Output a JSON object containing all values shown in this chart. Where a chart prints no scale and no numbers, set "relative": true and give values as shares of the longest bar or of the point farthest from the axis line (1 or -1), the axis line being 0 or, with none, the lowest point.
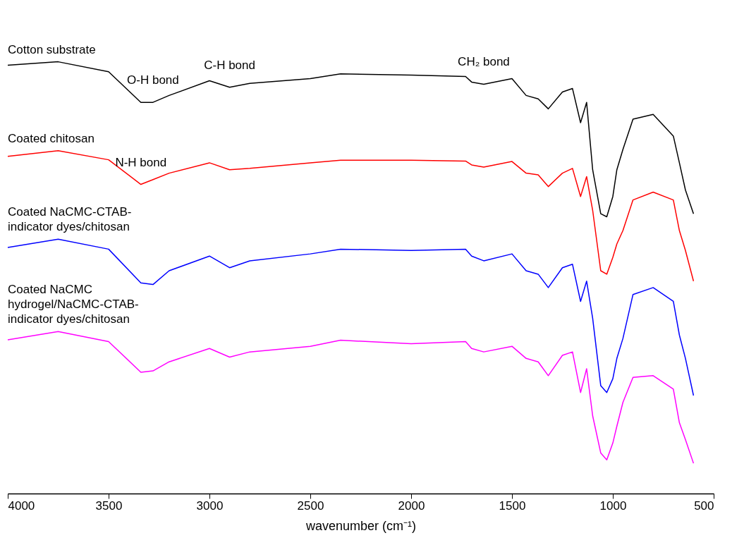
{
  "chart_data": {
    "type": "line",
    "relative": true,
    "xlabel": "wavenumber (cm⁻¹)",
    "xlim": [
      4000,
      500
    ],
    "xticks": [
      4000,
      3500,
      3000,
      2500,
      2000,
      1500,
      1000,
      500
    ],
    "x": [
      4000,
      3750,
      3500,
      3340,
      3280,
      3200,
      3000,
      2900,
      2800,
      2500,
      2350,
      2000,
      1730,
      1700,
      1640,
      1500,
      1430,
      1370,
      1320,
      1250,
      1200,
      1160,
      1130,
      1100,
      1060,
      1030,
      1000,
      980,
      950,
      900,
      800,
      700,
      670,
      640,
      600
    ],
    "series": [
      {
        "name": "Cotton substrate",
        "color": "#000000",
        "values": [
          0.992,
          1,
          0.977,
          0.906,
          0.906,
          0.922,
          0.956,
          0.941,
          0.95,
          0.961,
          0.972,
          0.969,
          0.966,
          0.953,
          0.948,
          0.961,
          0.922,
          0.914,
          0.891,
          0.93,
          0.938,
          0.859,
          0.906,
          0.75,
          0.648,
          0.641,
          0.688,
          0.75,
          0.797,
          0.867,
          0.878,
          0.828,
          0.766,
          0.703,
          0.648
        ]
      },
      {
        "name": "Coated chitosan",
        "color": "#ff0000",
        "values": [
          0.781,
          0.794,
          0.773,
          0.716,
          0.727,
          0.742,
          0.766,
          0.75,
          0.753,
          0.766,
          0.772,
          0.772,
          0.77,
          0.761,
          0.756,
          0.769,
          0.742,
          0.738,
          0.711,
          0.742,
          0.753,
          0.688,
          0.734,
          0.656,
          0.516,
          0.508,
          0.547,
          0.578,
          0.609,
          0.68,
          0.698,
          0.68,
          0.609,
          0.563,
          0.492
        ]
      },
      {
        "name": "Coated NaCMC-CTAB-indicator dyes/chitosan",
        "color": "#0000ff",
        "values": [
          0.57,
          0.589,
          0.566,
          0.488,
          0.484,
          0.516,
          0.55,
          0.523,
          0.539,
          0.555,
          0.566,
          0.563,
          0.566,
          0.55,
          0.539,
          0.555,
          0.516,
          0.508,
          0.477,
          0.523,
          0.531,
          0.445,
          0.492,
          0.406,
          0.25,
          0.234,
          0.266,
          0.313,
          0.359,
          0.461,
          0.477,
          0.445,
          0.367,
          0.313,
          0.227
        ]
      },
      {
        "name": "Coated NaCMC hydrogel/NaCMC-CTAB-indicator dyes/chitosan",
        "color": "#ff00ff",
        "values": [
          0.356,
          0.375,
          0.352,
          0.281,
          0.284,
          0.305,
          0.336,
          0.316,
          0.328,
          0.341,
          0.355,
          0.347,
          0.352,
          0.336,
          0.328,
          0.341,
          0.313,
          0.305,
          0.273,
          0.32,
          0.328,
          0.234,
          0.289,
          0.18,
          0.094,
          0.078,
          0.117,
          0.156,
          0.211,
          0.269,
          0.273,
          0.242,
          0.164,
          0.125,
          0.07
        ]
      }
    ],
    "annotations": [
      {
        "text": "O-H bond",
        "x": 3280,
        "y": 0.906
      },
      {
        "text": "C-H bond",
        "x": 2900,
        "y": 0.941
      },
      {
        "text": "CH₂ bond",
        "x": 1640,
        "y": 0.948
      },
      {
        "text": "N-H bond",
        "x": 3340,
        "y": 0.716
      }
    ]
  }
}
